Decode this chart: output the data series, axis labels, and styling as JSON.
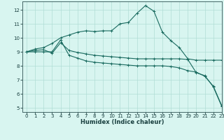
{
  "title": "",
  "xlabel": "Humidex (Indice chaleur)",
  "bg_color": "#d8f5f0",
  "grid_color": "#b0ddd6",
  "line_color": "#1a6b60",
  "xlim": [
    -0.5,
    23
  ],
  "ylim": [
    4.7,
    12.6
  ],
  "yticks": [
    5,
    6,
    7,
    8,
    9,
    10,
    11,
    12
  ],
  "xticks": [
    0,
    1,
    2,
    3,
    4,
    5,
    6,
    7,
    8,
    9,
    10,
    11,
    12,
    13,
    14,
    15,
    16,
    17,
    18,
    19,
    20,
    21,
    22,
    23
  ],
  "line1_x": [
    0,
    1,
    2,
    3,
    4,
    5,
    6,
    7,
    8,
    9,
    10,
    11,
    12,
    13,
    14,
    15,
    16,
    17,
    18,
    19,
    20,
    21,
    22,
    23
  ],
  "line1_y": [
    9.0,
    9.2,
    9.3,
    9.6,
    10.0,
    10.2,
    10.4,
    10.5,
    10.45,
    10.5,
    10.5,
    11.0,
    11.1,
    11.75,
    12.3,
    11.9,
    10.4,
    9.8,
    9.3,
    8.5,
    8.4,
    8.4,
    8.4,
    8.4
  ],
  "line2_x": [
    0,
    1,
    2,
    3,
    4,
    5,
    6,
    7,
    8,
    9,
    10,
    11,
    12,
    13,
    14,
    15,
    16,
    17,
    18,
    19,
    20,
    21,
    22,
    23
  ],
  "line2_y": [
    9.0,
    9.1,
    9.15,
    8.9,
    9.65,
    9.1,
    8.95,
    8.85,
    8.75,
    8.7,
    8.65,
    8.6,
    8.55,
    8.5,
    8.5,
    8.5,
    8.5,
    8.5,
    8.5,
    8.45,
    7.5,
    7.3,
    6.5,
    5.1
  ],
  "line3_x": [
    0,
    1,
    2,
    3,
    4,
    5,
    6,
    7,
    8,
    9,
    10,
    11,
    12,
    13,
    14,
    15,
    16,
    17,
    18,
    19,
    20,
    21,
    22,
    23
  ],
  "line3_y": [
    9.0,
    9.0,
    9.0,
    9.0,
    9.85,
    8.75,
    8.55,
    8.35,
    8.25,
    8.2,
    8.15,
    8.1,
    8.05,
    8.0,
    8.0,
    8.0,
    8.0,
    7.95,
    7.85,
    7.65,
    7.55,
    7.25,
    6.55,
    5.15
  ]
}
